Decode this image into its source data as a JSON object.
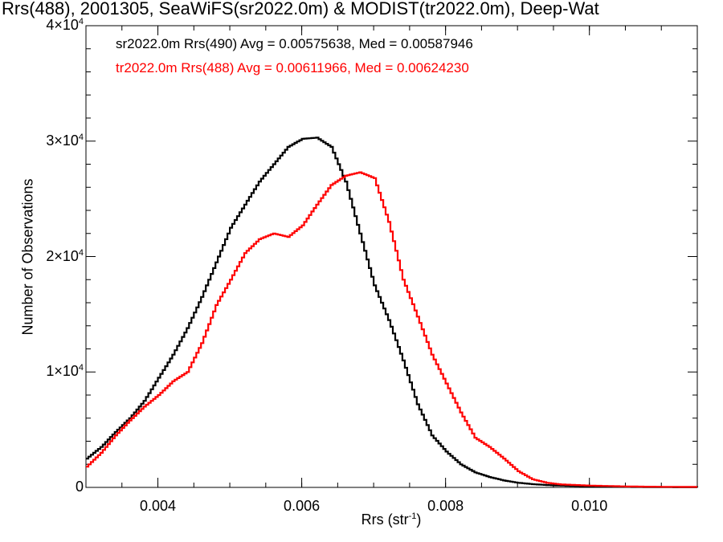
{
  "chart_data": {
    "type": "line",
    "title": "Rrs(488), 2001305, SeaWiFS(sr2022.0m) & MODIST(tr2022.0m), Deep-Wat",
    "xlabel": "Rrs (str",
    "xlabel_sup": "-1",
    "xlabel_close": ")",
    "ylabel": "Number of Observations",
    "xlim": [
      0.003,
      0.0115
    ],
    "ylim": [
      0,
      40000
    ],
    "x_ticks": [
      0.004,
      0.006,
      0.008,
      0.01
    ],
    "x_tick_labels": [
      "0.004",
      "0.006",
      "0.008",
      "0.010"
    ],
    "y_ticks": [
      0,
      10000,
      20000,
      30000,
      40000
    ],
    "y_tick_labels": [
      {
        "mant": "0",
        "exp": ""
      },
      {
        "mant": "1×10",
        "exp": "4"
      },
      {
        "mant": "2×10",
        "exp": "4"
      },
      {
        "mant": "3×10",
        "exp": "4"
      },
      {
        "mant": "4×10",
        "exp": "4"
      }
    ],
    "grid": false,
    "legend_position": "top-left",
    "series": [
      {
        "name": "sr2022.0m Rrs(490) Avg = 0.00575638, Med = 0.00587946",
        "color": "#000000",
        "x": [
          0.003,
          0.0032,
          0.0034,
          0.0036,
          0.0038,
          0.004,
          0.0042,
          0.0044,
          0.0046,
          0.0048,
          0.005,
          0.0052,
          0.0054,
          0.0056,
          0.0058,
          0.006,
          0.0062,
          0.0064,
          0.0066,
          0.0068,
          0.007,
          0.0072,
          0.0074,
          0.0076,
          0.0078,
          0.008,
          0.0082,
          0.0084,
          0.0086,
          0.0088,
          0.009,
          0.0092,
          0.0094,
          0.0096,
          0.01,
          0.0105,
          0.011,
          0.0115
        ],
        "y": [
          2500,
          3500,
          4800,
          6000,
          7500,
          9500,
          11500,
          13800,
          16500,
          19500,
          22500,
          24500,
          26500,
          28000,
          29500,
          30200,
          30300,
          29500,
          26500,
          22000,
          17500,
          14500,
          11000,
          7200,
          4500,
          3100,
          2000,
          1300,
          900,
          600,
          400,
          280,
          200,
          150,
          80,
          40,
          20,
          10
        ]
      },
      {
        "name": "tr2022.0m Rrs(488) Avg = 0.00611966, Med = 0.00624230",
        "color": "#ff0000",
        "x": [
          0.003,
          0.0032,
          0.0034,
          0.0036,
          0.0038,
          0.004,
          0.0042,
          0.0044,
          0.0046,
          0.0048,
          0.005,
          0.0052,
          0.0054,
          0.0056,
          0.0058,
          0.006,
          0.0062,
          0.0064,
          0.0066,
          0.0068,
          0.007,
          0.0072,
          0.0074,
          0.0076,
          0.0078,
          0.008,
          0.0082,
          0.0084,
          0.0086,
          0.0088,
          0.009,
          0.0092,
          0.0094,
          0.0096,
          0.01,
          0.0105,
          0.011,
          0.0115
        ],
        "y": [
          1800,
          3000,
          4500,
          5800,
          7000,
          8000,
          9200,
          10000,
          12500,
          15800,
          18000,
          20300,
          21500,
          22000,
          21700,
          22700,
          24500,
          26200,
          27000,
          27300,
          26800,
          23000,
          18000,
          14800,
          11500,
          9000,
          6500,
          4300,
          3500,
          2500,
          1400,
          700,
          400,
          250,
          150,
          80,
          50,
          40
        ]
      }
    ]
  }
}
